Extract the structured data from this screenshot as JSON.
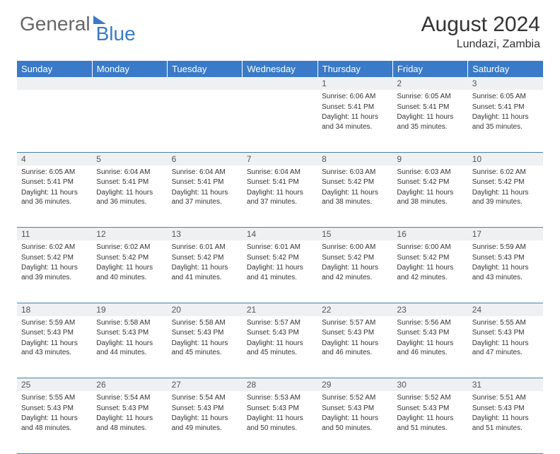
{
  "brand": {
    "part1": "General",
    "part2": "Blue"
  },
  "title": "August 2024",
  "location": "Lundazi, Zambia",
  "colors": {
    "header_bg": "#3a7ac8",
    "header_text": "#ffffff",
    "daynum_bg": "#eef0f2",
    "border": "#4a7fb0",
    "body_text": "#333333"
  },
  "day_headers": [
    "Sunday",
    "Monday",
    "Tuesday",
    "Wednesday",
    "Thursday",
    "Friday",
    "Saturday"
  ],
  "weeks": [
    [
      null,
      null,
      null,
      null,
      {
        "n": "1",
        "sr": "6:06 AM",
        "ss": "5:41 PM",
        "dl": "11 hours and 34 minutes."
      },
      {
        "n": "2",
        "sr": "6:05 AM",
        "ss": "5:41 PM",
        "dl": "11 hours and 35 minutes."
      },
      {
        "n": "3",
        "sr": "6:05 AM",
        "ss": "5:41 PM",
        "dl": "11 hours and 35 minutes."
      }
    ],
    [
      {
        "n": "4",
        "sr": "6:05 AM",
        "ss": "5:41 PM",
        "dl": "11 hours and 36 minutes."
      },
      {
        "n": "5",
        "sr": "6:04 AM",
        "ss": "5:41 PM",
        "dl": "11 hours and 36 minutes."
      },
      {
        "n": "6",
        "sr": "6:04 AM",
        "ss": "5:41 PM",
        "dl": "11 hours and 37 minutes."
      },
      {
        "n": "7",
        "sr": "6:04 AM",
        "ss": "5:41 PM",
        "dl": "11 hours and 37 minutes."
      },
      {
        "n": "8",
        "sr": "6:03 AM",
        "ss": "5:42 PM",
        "dl": "11 hours and 38 minutes."
      },
      {
        "n": "9",
        "sr": "6:03 AM",
        "ss": "5:42 PM",
        "dl": "11 hours and 38 minutes."
      },
      {
        "n": "10",
        "sr": "6:02 AM",
        "ss": "5:42 PM",
        "dl": "11 hours and 39 minutes."
      }
    ],
    [
      {
        "n": "11",
        "sr": "6:02 AM",
        "ss": "5:42 PM",
        "dl": "11 hours and 39 minutes."
      },
      {
        "n": "12",
        "sr": "6:02 AM",
        "ss": "5:42 PM",
        "dl": "11 hours and 40 minutes."
      },
      {
        "n": "13",
        "sr": "6:01 AM",
        "ss": "5:42 PM",
        "dl": "11 hours and 41 minutes."
      },
      {
        "n": "14",
        "sr": "6:01 AM",
        "ss": "5:42 PM",
        "dl": "11 hours and 41 minutes."
      },
      {
        "n": "15",
        "sr": "6:00 AM",
        "ss": "5:42 PM",
        "dl": "11 hours and 42 minutes."
      },
      {
        "n": "16",
        "sr": "6:00 AM",
        "ss": "5:42 PM",
        "dl": "11 hours and 42 minutes."
      },
      {
        "n": "17",
        "sr": "5:59 AM",
        "ss": "5:43 PM",
        "dl": "11 hours and 43 minutes."
      }
    ],
    [
      {
        "n": "18",
        "sr": "5:59 AM",
        "ss": "5:43 PM",
        "dl": "11 hours and 43 minutes."
      },
      {
        "n": "19",
        "sr": "5:58 AM",
        "ss": "5:43 PM",
        "dl": "11 hours and 44 minutes."
      },
      {
        "n": "20",
        "sr": "5:58 AM",
        "ss": "5:43 PM",
        "dl": "11 hours and 45 minutes."
      },
      {
        "n": "21",
        "sr": "5:57 AM",
        "ss": "5:43 PM",
        "dl": "11 hours and 45 minutes."
      },
      {
        "n": "22",
        "sr": "5:57 AM",
        "ss": "5:43 PM",
        "dl": "11 hours and 46 minutes."
      },
      {
        "n": "23",
        "sr": "5:56 AM",
        "ss": "5:43 PM",
        "dl": "11 hours and 46 minutes."
      },
      {
        "n": "24",
        "sr": "5:55 AM",
        "ss": "5:43 PM",
        "dl": "11 hours and 47 minutes."
      }
    ],
    [
      {
        "n": "25",
        "sr": "5:55 AM",
        "ss": "5:43 PM",
        "dl": "11 hours and 48 minutes."
      },
      {
        "n": "26",
        "sr": "5:54 AM",
        "ss": "5:43 PM",
        "dl": "11 hours and 48 minutes."
      },
      {
        "n": "27",
        "sr": "5:54 AM",
        "ss": "5:43 PM",
        "dl": "11 hours and 49 minutes."
      },
      {
        "n": "28",
        "sr": "5:53 AM",
        "ss": "5:43 PM",
        "dl": "11 hours and 50 minutes."
      },
      {
        "n": "29",
        "sr": "5:52 AM",
        "ss": "5:43 PM",
        "dl": "11 hours and 50 minutes."
      },
      {
        "n": "30",
        "sr": "5:52 AM",
        "ss": "5:43 PM",
        "dl": "11 hours and 51 minutes."
      },
      {
        "n": "31",
        "sr": "5:51 AM",
        "ss": "5:43 PM",
        "dl": "11 hours and 51 minutes."
      }
    ]
  ],
  "labels": {
    "sunrise": "Sunrise:",
    "sunset": "Sunset:",
    "daylight": "Daylight:"
  }
}
